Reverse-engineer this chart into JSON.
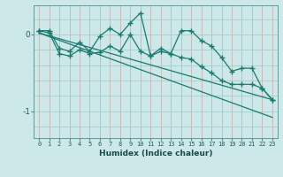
{
  "title": "",
  "xlabel": "Humidex (Indice chaleur)",
  "bg_color": "#cce8e8",
  "line_color": "#1a7a6e",
  "grid_color_v": "#c8a8a8",
  "xlim": [
    -0.5,
    23.5
  ],
  "ylim": [
    -1.35,
    0.38
  ],
  "yticks": [
    0,
    -1
  ],
  "xticks": [
    0,
    1,
    2,
    3,
    4,
    5,
    6,
    7,
    8,
    9,
    10,
    11,
    12,
    13,
    14,
    15,
    16,
    17,
    18,
    19,
    20,
    21,
    22,
    23
  ],
  "series1_x": [
    0,
    1,
    2,
    3,
    4,
    5,
    6,
    7,
    8,
    9,
    10,
    11,
    12,
    13,
    14,
    15,
    16,
    17,
    18,
    19,
    20,
    21,
    22,
    23
  ],
  "series1_y": [
    0.05,
    0.05,
    -0.18,
    -0.22,
    -0.1,
    -0.22,
    -0.02,
    0.08,
    0.0,
    0.15,
    0.28,
    -0.28,
    -0.18,
    -0.25,
    0.05,
    0.05,
    -0.08,
    -0.15,
    -0.3,
    -0.48,
    -0.44,
    -0.44,
    -0.7,
    -0.85
  ],
  "series2_x": [
    0,
    1,
    2,
    3,
    4,
    5,
    6,
    7,
    8,
    9,
    10,
    11,
    12,
    13,
    14,
    15,
    16,
    17,
    18,
    19,
    20,
    21,
    22,
    23
  ],
  "series2_y": [
    0.05,
    0.02,
    -0.25,
    -0.28,
    -0.2,
    -0.25,
    -0.23,
    -0.15,
    -0.22,
    0.0,
    -0.22,
    -0.28,
    -0.22,
    -0.25,
    -0.3,
    -0.32,
    -0.42,
    -0.5,
    -0.6,
    -0.65,
    -0.65,
    -0.65,
    -0.7,
    -0.85
  ],
  "series3_x": [
    0,
    23
  ],
  "series3_y": [
    0.02,
    -1.08
  ],
  "series4_x": [
    0,
    23
  ],
  "series4_y": [
    0.02,
    -0.85
  ]
}
